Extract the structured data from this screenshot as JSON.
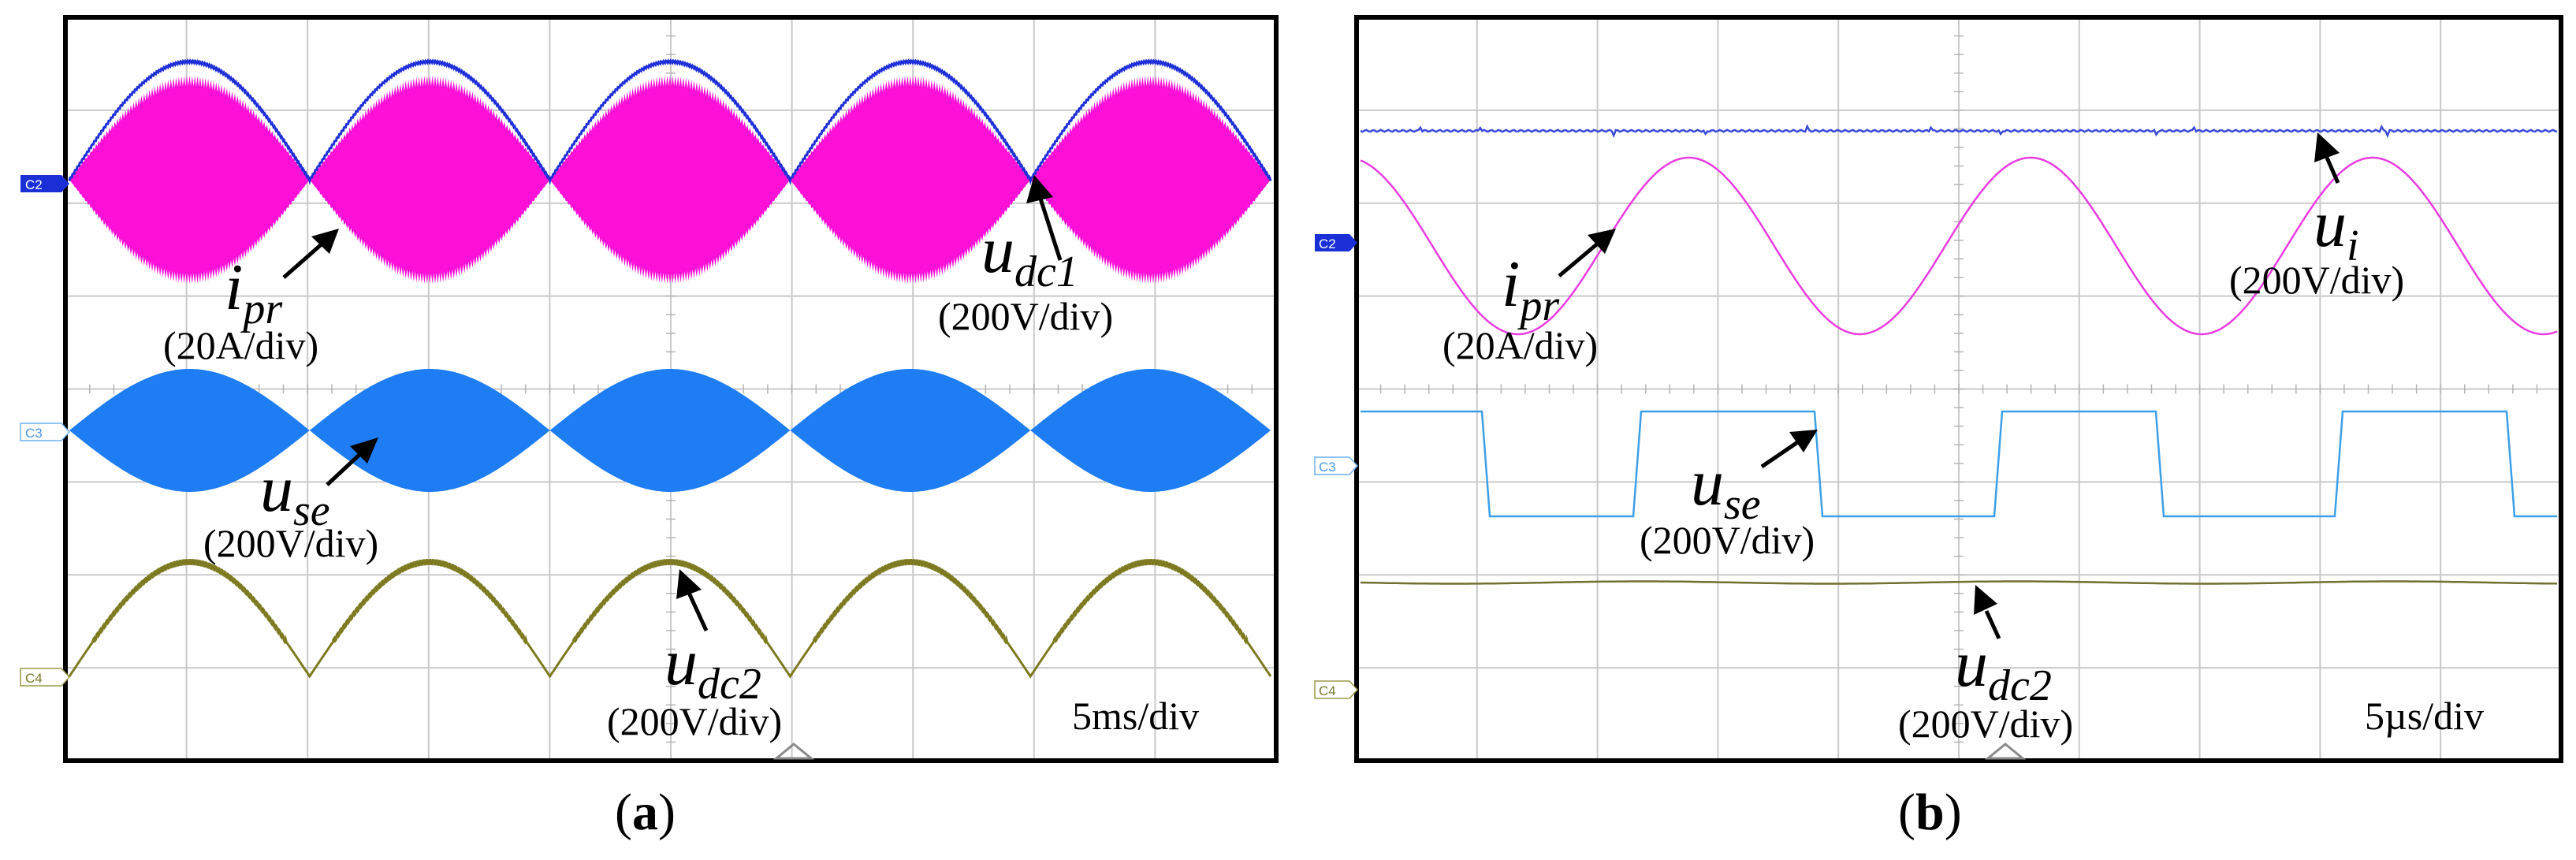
{
  "chart_data": [
    {
      "type": "line",
      "caption": "(a)",
      "timebase": "5ms/div",
      "grid": true,
      "channel_markers": [
        "C2",
        "C3",
        "C4"
      ],
      "traces": [
        {
          "key": "udc1",
          "label_main": "u",
          "label_sub": "dc1",
          "scale": "(200V/div)",
          "color": "#1f2fd8",
          "shape": "rectified_sine",
          "periods": 5
        },
        {
          "key": "ipr",
          "label_main": "i",
          "label_sub": "pr",
          "scale": "(20A/div)",
          "color": "#ff10d6",
          "shape": "sine_envelope_hf",
          "periods": 5
        },
        {
          "key": "use",
          "label_main": "u",
          "label_sub": "se",
          "scale": "(200V/div)",
          "color": "#1e7df2",
          "shape": "sine_envelope_hf",
          "periods": 5
        },
        {
          "key": "udc2",
          "label_main": "u",
          "label_sub": "dc2",
          "scale": "(200V/div)",
          "color": "#7d7a22",
          "shape": "rectified_sine",
          "periods": 5
        }
      ]
    },
    {
      "type": "line",
      "caption": "(b)",
      "timebase": "5µs/div",
      "grid": true,
      "channel_markers": [
        "C2",
        "C3",
        "C4"
      ],
      "traces": [
        {
          "key": "ui",
          "label_main": "u",
          "label_sub": "i",
          "scale": "(200V/div)",
          "color": "#3a4ad8",
          "shape": "dc_flat"
        },
        {
          "key": "ipr",
          "label_main": "i",
          "label_sub": "pr",
          "scale": "(20A/div)",
          "color": "#ea3ce0",
          "shape": "sine",
          "periods": 3.5
        },
        {
          "key": "use",
          "label_main": "u",
          "label_sub": "se",
          "scale": "(200V/div)",
          "color": "#3d9fe8",
          "shape": "square",
          "periods": 3.5
        },
        {
          "key": "udc2",
          "label_main": "u",
          "label_sub": "dc2",
          "scale": "(200V/div)",
          "color": "#707030",
          "shape": "dc_flat"
        }
      ]
    }
  ]
}
